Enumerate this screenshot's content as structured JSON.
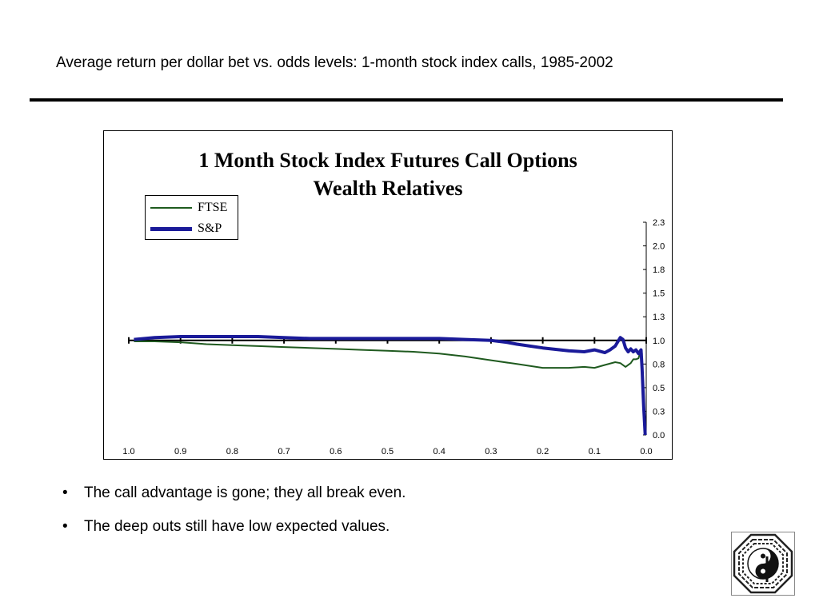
{
  "slide": {
    "title": "Average return per dollar bet vs. odds levels:  1-month stock index calls, 1985-2002",
    "bullets": [
      "The call advantage is gone; they all break even.",
      "The deep outs still have low expected values."
    ],
    "bullet_marker": "•",
    "logo_icon": "bagua-logo-icon"
  },
  "chart_data": {
    "type": "line",
    "title_line1": "1 Month Stock Index Futures Call Options",
    "title_line2": "Wealth Relatives",
    "x_tick_labels": [
      "1.0",
      "0.9",
      "0.8",
      "0.7",
      "0.6",
      "0.5",
      "0.4",
      "0.3",
      "0.2",
      "0.1",
      "0.0"
    ],
    "x_ticks": [
      1.0,
      0.9,
      0.8,
      0.7,
      0.6,
      0.5,
      0.4,
      0.3,
      0.2,
      0.1,
      0.0
    ],
    "xlim": [
      1.0,
      0.0
    ],
    "y_tick_labels": [
      "0.0",
      "0.3",
      "0.5",
      "0.8",
      "1.0",
      "1.3",
      "1.5",
      "1.8",
      "2.0",
      "2.3"
    ],
    "y_ticks": [
      0.0,
      0.25,
      0.5,
      0.75,
      1.0,
      1.25,
      1.5,
      1.75,
      2.0,
      2.25
    ],
    "ylim": [
      0.0,
      2.25
    ],
    "reference_line": 1.0,
    "legend_position": "top-left",
    "series": [
      {
        "name": "FTSE",
        "color": "#1f5a1f",
        "style": "thin",
        "x": [
          0.99,
          0.95,
          0.9,
          0.85,
          0.8,
          0.75,
          0.7,
          0.65,
          0.6,
          0.55,
          0.5,
          0.45,
          0.4,
          0.35,
          0.3,
          0.25,
          0.2,
          0.15,
          0.12,
          0.1,
          0.08,
          0.06,
          0.05,
          0.04,
          0.03,
          0.025,
          0.02,
          0.015,
          0.01,
          0.008
        ],
        "y": [
          0.99,
          0.99,
          0.98,
          0.96,
          0.95,
          0.94,
          0.93,
          0.92,
          0.91,
          0.9,
          0.89,
          0.88,
          0.86,
          0.83,
          0.79,
          0.75,
          0.71,
          0.71,
          0.72,
          0.71,
          0.74,
          0.77,
          0.76,
          0.72,
          0.76,
          0.8,
          0.8,
          0.81,
          0.9,
          0.85
        ]
      },
      {
        "name": "S&P",
        "color": "#1a1a99",
        "style": "thick",
        "x": [
          0.99,
          0.95,
          0.9,
          0.85,
          0.8,
          0.75,
          0.7,
          0.65,
          0.6,
          0.5,
          0.4,
          0.35,
          0.3,
          0.27,
          0.25,
          0.2,
          0.15,
          0.12,
          0.1,
          0.08,
          0.07,
          0.06,
          0.05,
          0.045,
          0.04,
          0.035,
          0.03,
          0.025,
          0.02,
          0.015,
          0.01,
          0.008,
          0.005,
          0.002
        ],
        "y": [
          1.01,
          1.03,
          1.04,
          1.04,
          1.04,
          1.04,
          1.03,
          1.02,
          1.02,
          1.02,
          1.02,
          1.01,
          1.0,
          0.98,
          0.96,
          0.92,
          0.89,
          0.88,
          0.9,
          0.87,
          0.9,
          0.94,
          1.03,
          1.01,
          0.92,
          0.88,
          0.91,
          0.88,
          0.9,
          0.86,
          0.9,
          0.7,
          0.3,
          0.0
        ]
      }
    ]
  }
}
